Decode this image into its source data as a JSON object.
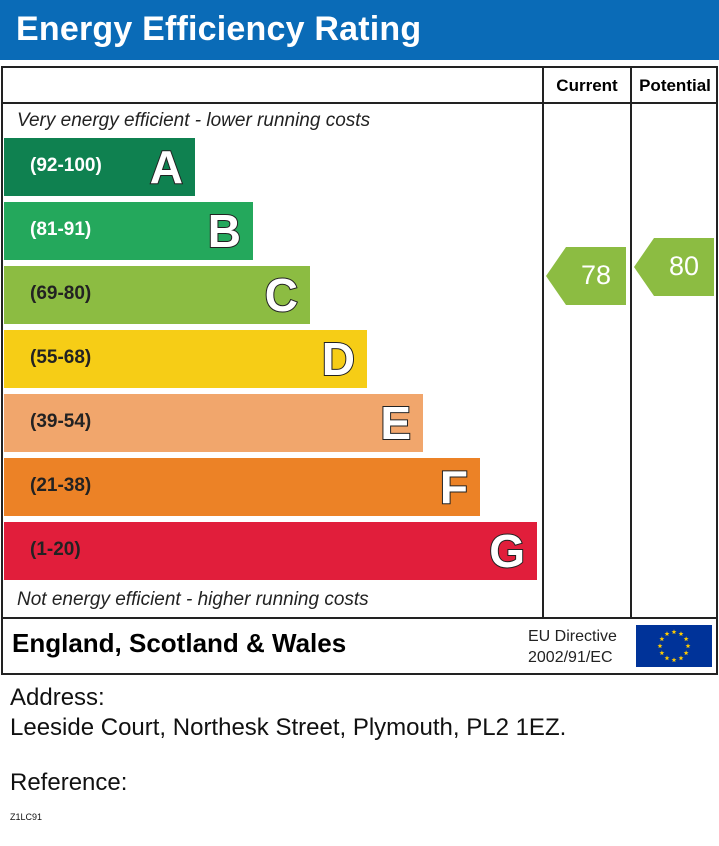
{
  "header": {
    "title": "Energy Efficiency Rating"
  },
  "columns": {
    "current": "Current",
    "potential": "Potential"
  },
  "notes": {
    "top": "Very energy efficient - lower running costs",
    "bottom": "Not energy efficient - higher running costs"
  },
  "chart_data": {
    "type": "bar",
    "bands": [
      {
        "letter": "A",
        "range": "(92-100)",
        "color": "#0f8150"
      },
      {
        "letter": "B",
        "range": "(81-91)",
        "color": "#24a85c"
      },
      {
        "letter": "C",
        "range": "(69-80)",
        "color": "#8cbc42"
      },
      {
        "letter": "D",
        "range": "(55-68)",
        "color": "#f6cd16"
      },
      {
        "letter": "E",
        "range": "(39-54)",
        "color": "#f1a66c"
      },
      {
        "letter": "F",
        "range": "(21-38)",
        "color": "#ec8226"
      },
      {
        "letter": "G",
        "range": "(1-20)",
        "color": "#e11e3b"
      }
    ],
    "current": {
      "value": 78,
      "band": "C",
      "color": "#8cbc42"
    },
    "potential": {
      "value": 80,
      "band": "C",
      "color": "#8cbc42"
    }
  },
  "footer": {
    "region": "England, Scotland & Wales",
    "eu_line1": "EU Directive",
    "eu_line2": "2002/91/EC",
    "flag_color": "#003399",
    "star_color": "#ffcc00"
  },
  "info": {
    "address_label": "Address:",
    "address_value": "Leeside Court, Northesk Street, Plymouth, PL2 1EZ.",
    "reference_label": "Reference:",
    "reference_value": "Z1LC91"
  }
}
